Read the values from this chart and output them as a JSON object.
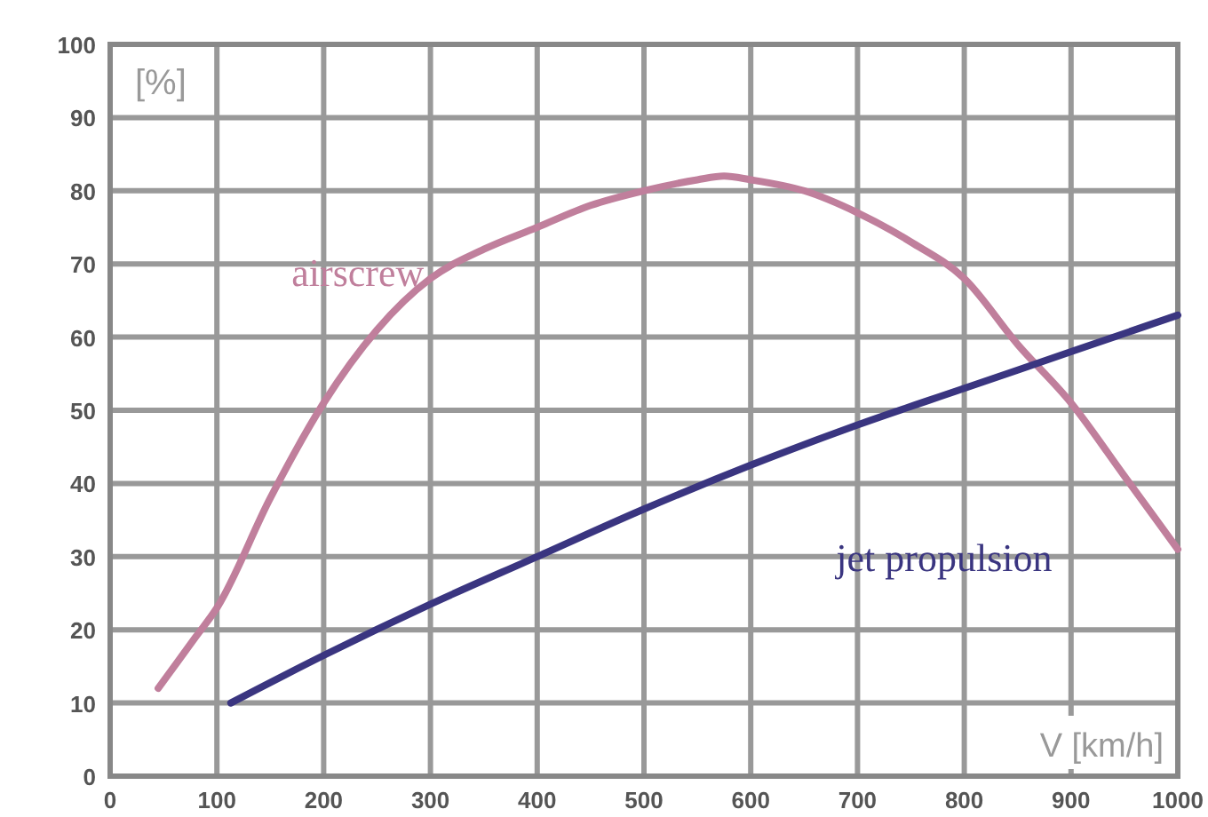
{
  "chart_data": {
    "type": "line",
    "xlabel": "V [km/h]",
    "ylabel": "[%]",
    "xlim": [
      0,
      1000
    ],
    "ylim": [
      0,
      100
    ],
    "xticks": [
      0,
      100,
      200,
      300,
      400,
      500,
      600,
      700,
      800,
      900,
      1000
    ],
    "yticks": [
      0,
      10,
      20,
      30,
      40,
      50,
      60,
      70,
      80,
      90,
      100
    ],
    "grid": true,
    "marker": "none",
    "line_style": "solid",
    "series": [
      {
        "name": "airscrew",
        "color": "#c07f9c",
        "x": [
          45,
          80,
          100,
          150,
          200,
          250,
          300,
          350,
          400,
          450,
          500,
          550,
          575,
          600,
          650,
          700,
          750,
          800,
          850,
          900,
          950,
          1000
        ],
        "values": [
          12,
          19,
          23,
          38,
          51,
          61,
          68,
          72,
          75,
          78,
          80,
          81.5,
          82,
          81.5,
          80,
          77,
          73,
          68,
          59,
          51,
          41,
          31
        ]
      },
      {
        "name": "jet propulsion",
        "color": "#3a3580",
        "x": [
          113,
          200,
          300,
          400,
          500,
          600,
          700,
          800,
          900,
          1000
        ],
        "values": [
          10,
          16.5,
          23.5,
          30,
          36.5,
          42.5,
          48,
          53,
          58,
          63
        ]
      }
    ]
  }
}
